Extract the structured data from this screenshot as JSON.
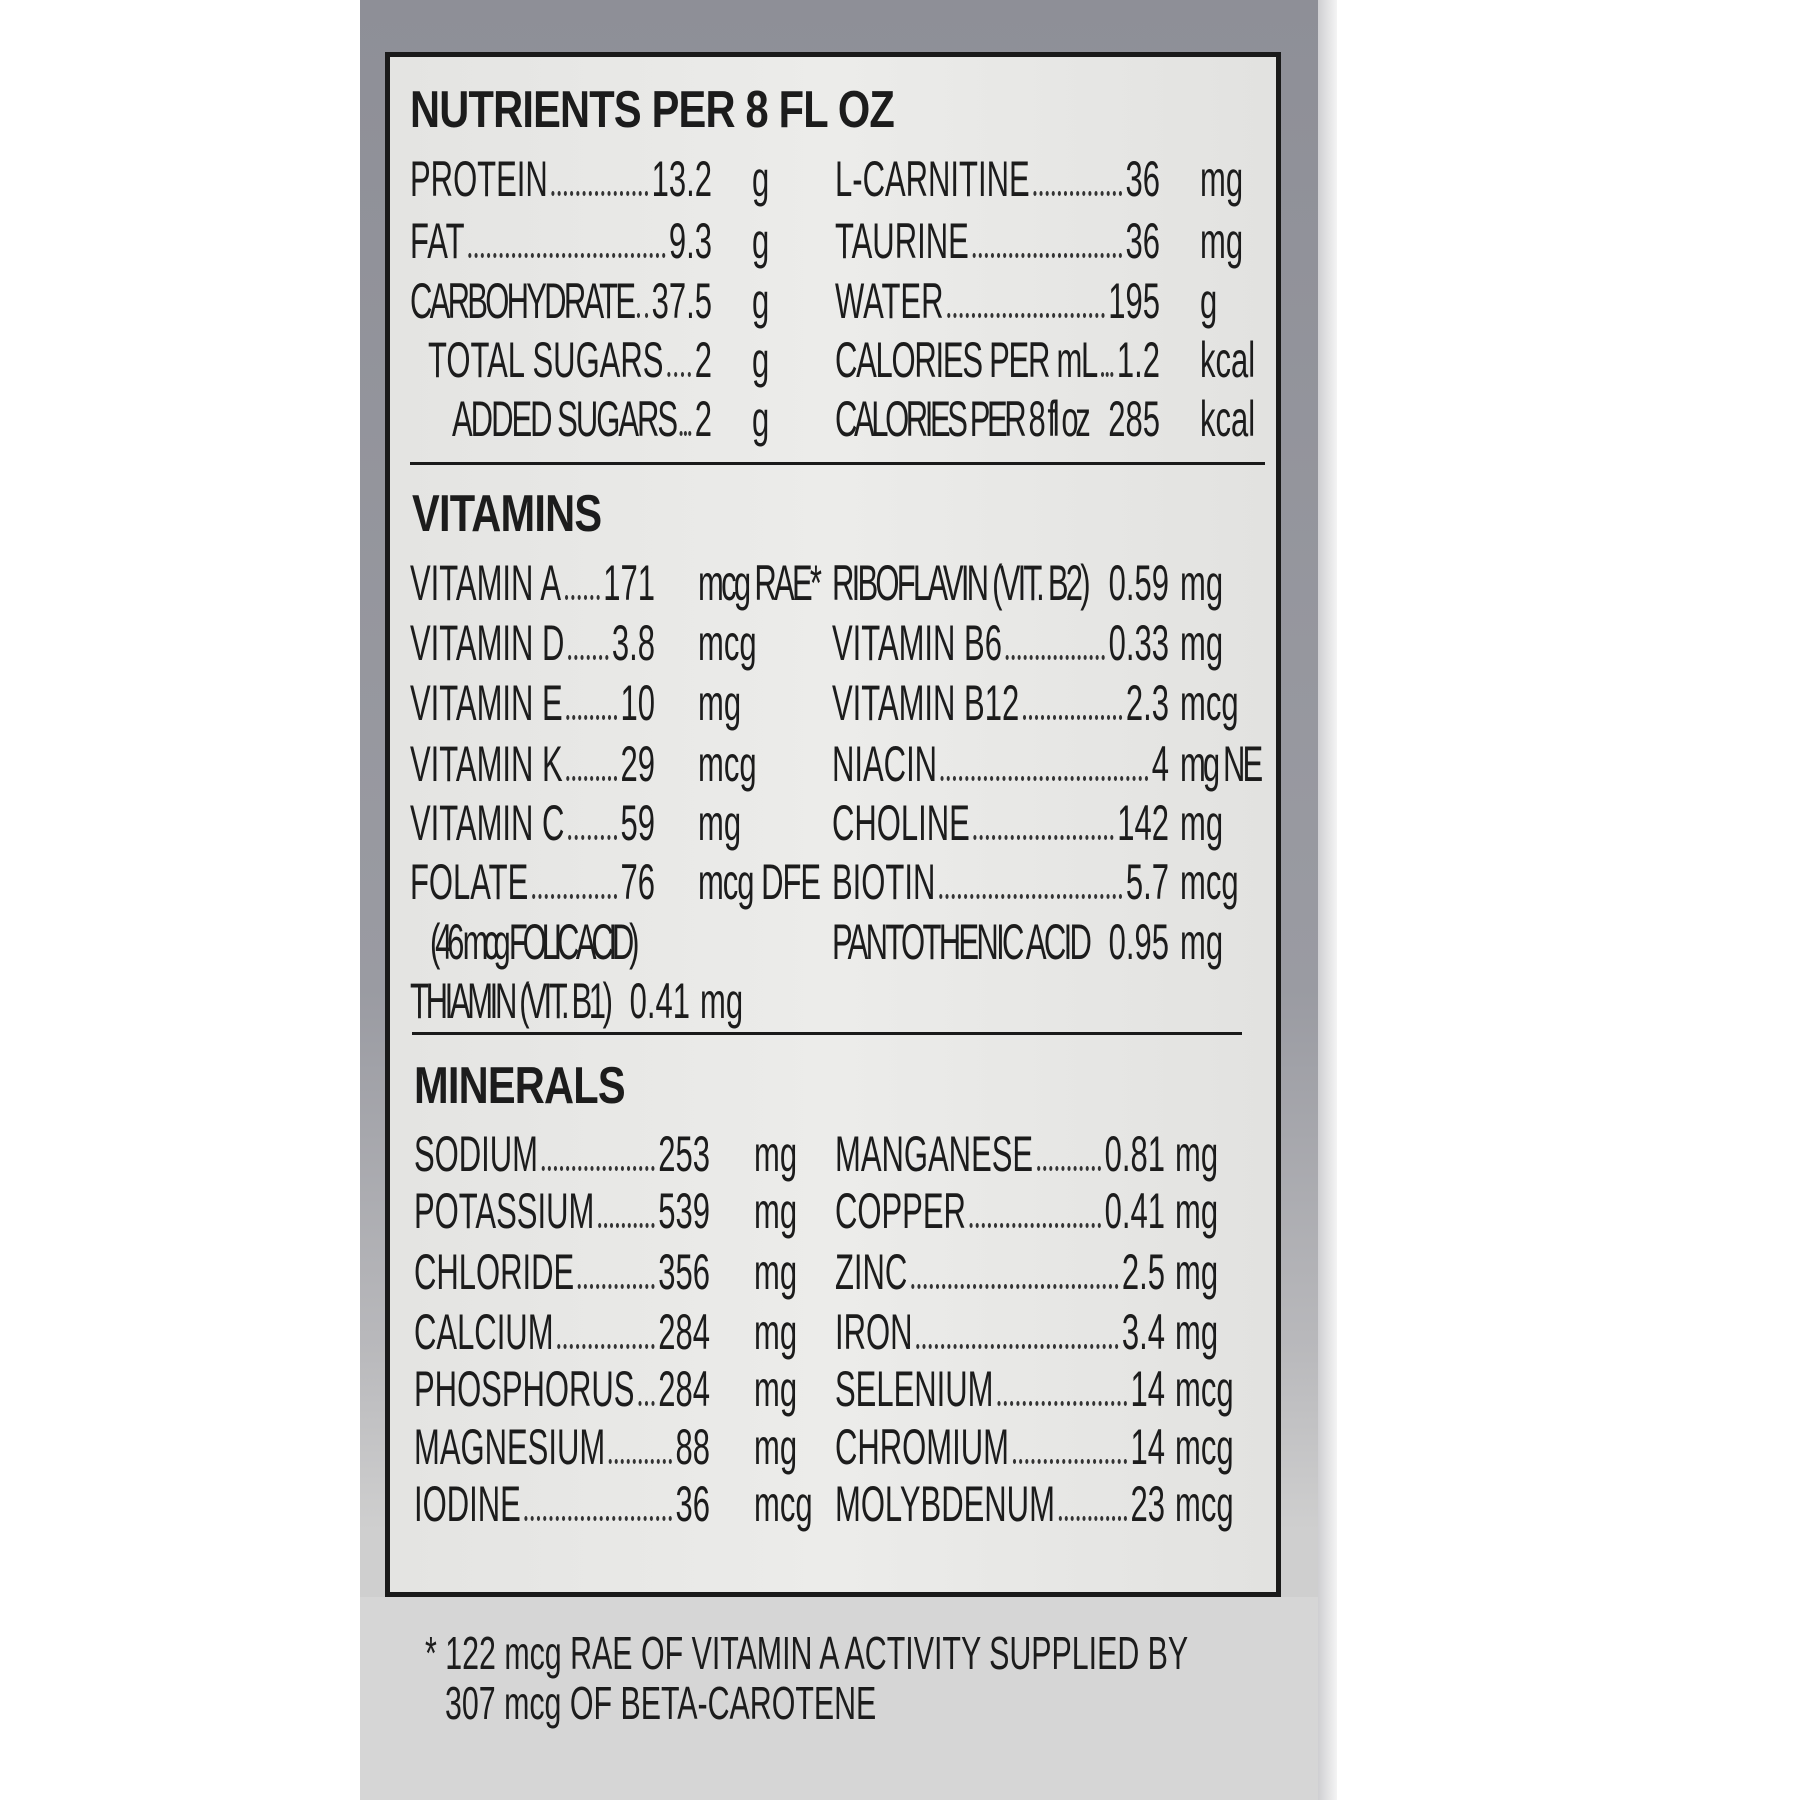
{
  "nutrients": {
    "heading": "NUTRIENTS PER 8 FL OZ",
    "left": [
      {
        "label": "PROTEIN",
        "value": "13.2",
        "unit": "g"
      },
      {
        "label": "FAT",
        "value": "9.3",
        "unit": "g"
      },
      {
        "label": "CARBOHYDRATE",
        "value": "37.5",
        "unit": "g"
      },
      {
        "label": "TOTAL SUGARS",
        "value": "2",
        "unit": "g"
      },
      {
        "label": "ADDED SUGARS",
        "value": "2",
        "unit": "g"
      }
    ],
    "right": [
      {
        "label": "L-CARNITINE",
        "value": "36",
        "unit": "mg"
      },
      {
        "label": "TAURINE",
        "value": "36",
        "unit": "mg"
      },
      {
        "label": "WATER",
        "value": "195",
        "unit": "g"
      },
      {
        "label": "CALORIES PER mL",
        "value": "1.2",
        "unit": "kcal"
      },
      {
        "label": "CALORIES PER 8 fl oz",
        "value": "285",
        "unit": "kcal"
      }
    ]
  },
  "vitamins": {
    "heading": "VITAMINS",
    "left": [
      {
        "label": "VITAMIN A",
        "value": "171",
        "unit": "mcg RAE*"
      },
      {
        "label": "VITAMIN D",
        "value": "3.8",
        "unit": "mcg"
      },
      {
        "label": "VITAMIN E",
        "value": "10",
        "unit": "mg"
      },
      {
        "label": "VITAMIN K",
        "value": "29",
        "unit": "mcg"
      },
      {
        "label": "VITAMIN C",
        "value": "59",
        "unit": "mg"
      },
      {
        "label": "FOLATE",
        "value": "76",
        "unit": "mcg DFE"
      },
      {
        "label": "(46 mcg FOLIC ACID)",
        "value": "",
        "unit": ""
      },
      {
        "label": "THIAMIN (VIT. B1)",
        "value": "0.41",
        "unit": "mg"
      }
    ],
    "right": [
      {
        "label": "RIBOFLAVIN (VIT. B2)",
        "value": "0.59",
        "unit": "mg"
      },
      {
        "label": "VITAMIN B6",
        "value": "0.33",
        "unit": "mg"
      },
      {
        "label": "VITAMIN B12",
        "value": "2.3",
        "unit": "mcg"
      },
      {
        "label": "NIACIN",
        "value": "4",
        "unit": "mg NE"
      },
      {
        "label": "CHOLINE",
        "value": "142",
        "unit": "mg"
      },
      {
        "label": "BIOTIN",
        "value": "5.7",
        "unit": "mcg"
      },
      {
        "label": "PANTOTHENIC ACID",
        "value": "0.95",
        "unit": "mg"
      }
    ]
  },
  "minerals": {
    "heading": "MINERALS",
    "left": [
      {
        "label": "SODIUM",
        "value": "253",
        "unit": "mg"
      },
      {
        "label": "POTASSIUM",
        "value": "539",
        "unit": "mg"
      },
      {
        "label": "CHLORIDE",
        "value": "356",
        "unit": "mg"
      },
      {
        "label": "CALCIUM",
        "value": "284",
        "unit": "mg"
      },
      {
        "label": "PHOSPHORUS",
        "value": "284",
        "unit": "mg"
      },
      {
        "label": "MAGNESIUM",
        "value": "88",
        "unit": "mg"
      },
      {
        "label": "IODINE",
        "value": "36",
        "unit": "mcg"
      }
    ],
    "right": [
      {
        "label": "MANGANESE",
        "value": "0.81",
        "unit": "mg"
      },
      {
        "label": "COPPER",
        "value": "0.41",
        "unit": "mg"
      },
      {
        "label": "ZINC",
        "value": "2.5",
        "unit": "mg"
      },
      {
        "label": "IRON",
        "value": "3.4",
        "unit": "mg"
      },
      {
        "label": "SELENIUM",
        "value": "14",
        "unit": "mcg"
      },
      {
        "label": "CHROMIUM",
        "value": "14",
        "unit": "mcg"
      },
      {
        "label": "MOLYBDENUM",
        "value": "23",
        "unit": "mcg"
      }
    ]
  },
  "footnote": {
    "line1": "* 122 mcg RAE OF VITAMIN A ACTIVITY SUPPLIED BY",
    "line2": "307 mcg OF BETA-CAROTENE"
  }
}
